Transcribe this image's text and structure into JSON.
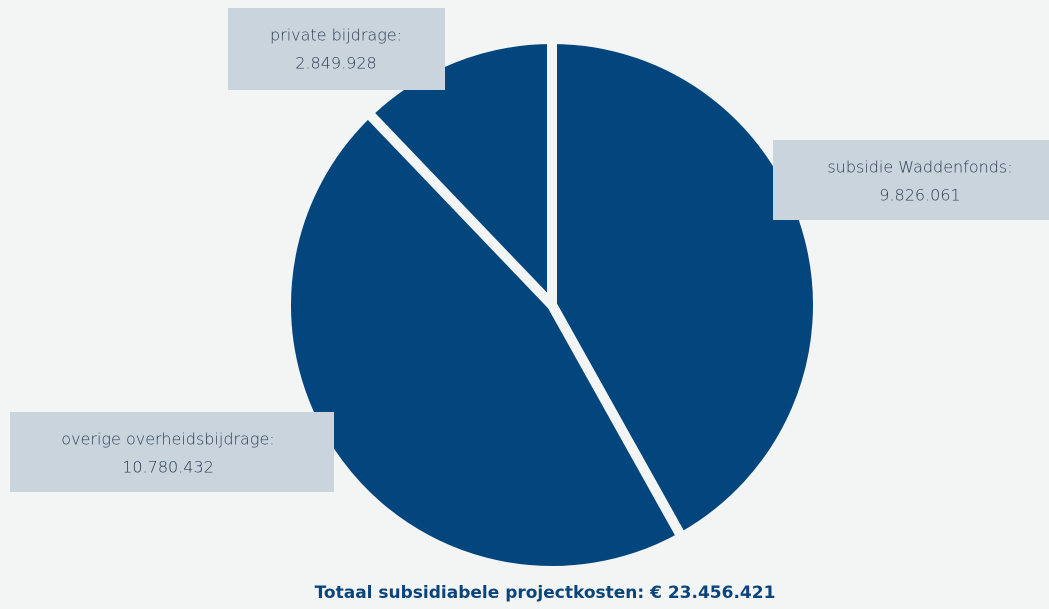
{
  "chart_data": {
    "type": "pie",
    "categories": [
      "subsidie Waddenfonds:",
      "overige overheidsbijdrage:",
      "private bijdrage:"
    ],
    "values": [
      9826061,
      10780432,
      2849928
    ],
    "value_labels": [
      "9.826.061",
      "10.780.432",
      "2.849.928"
    ],
    "color": "#03467d",
    "total": "Totaal subsidiabele projectkosten: € 23.456.421"
  }
}
